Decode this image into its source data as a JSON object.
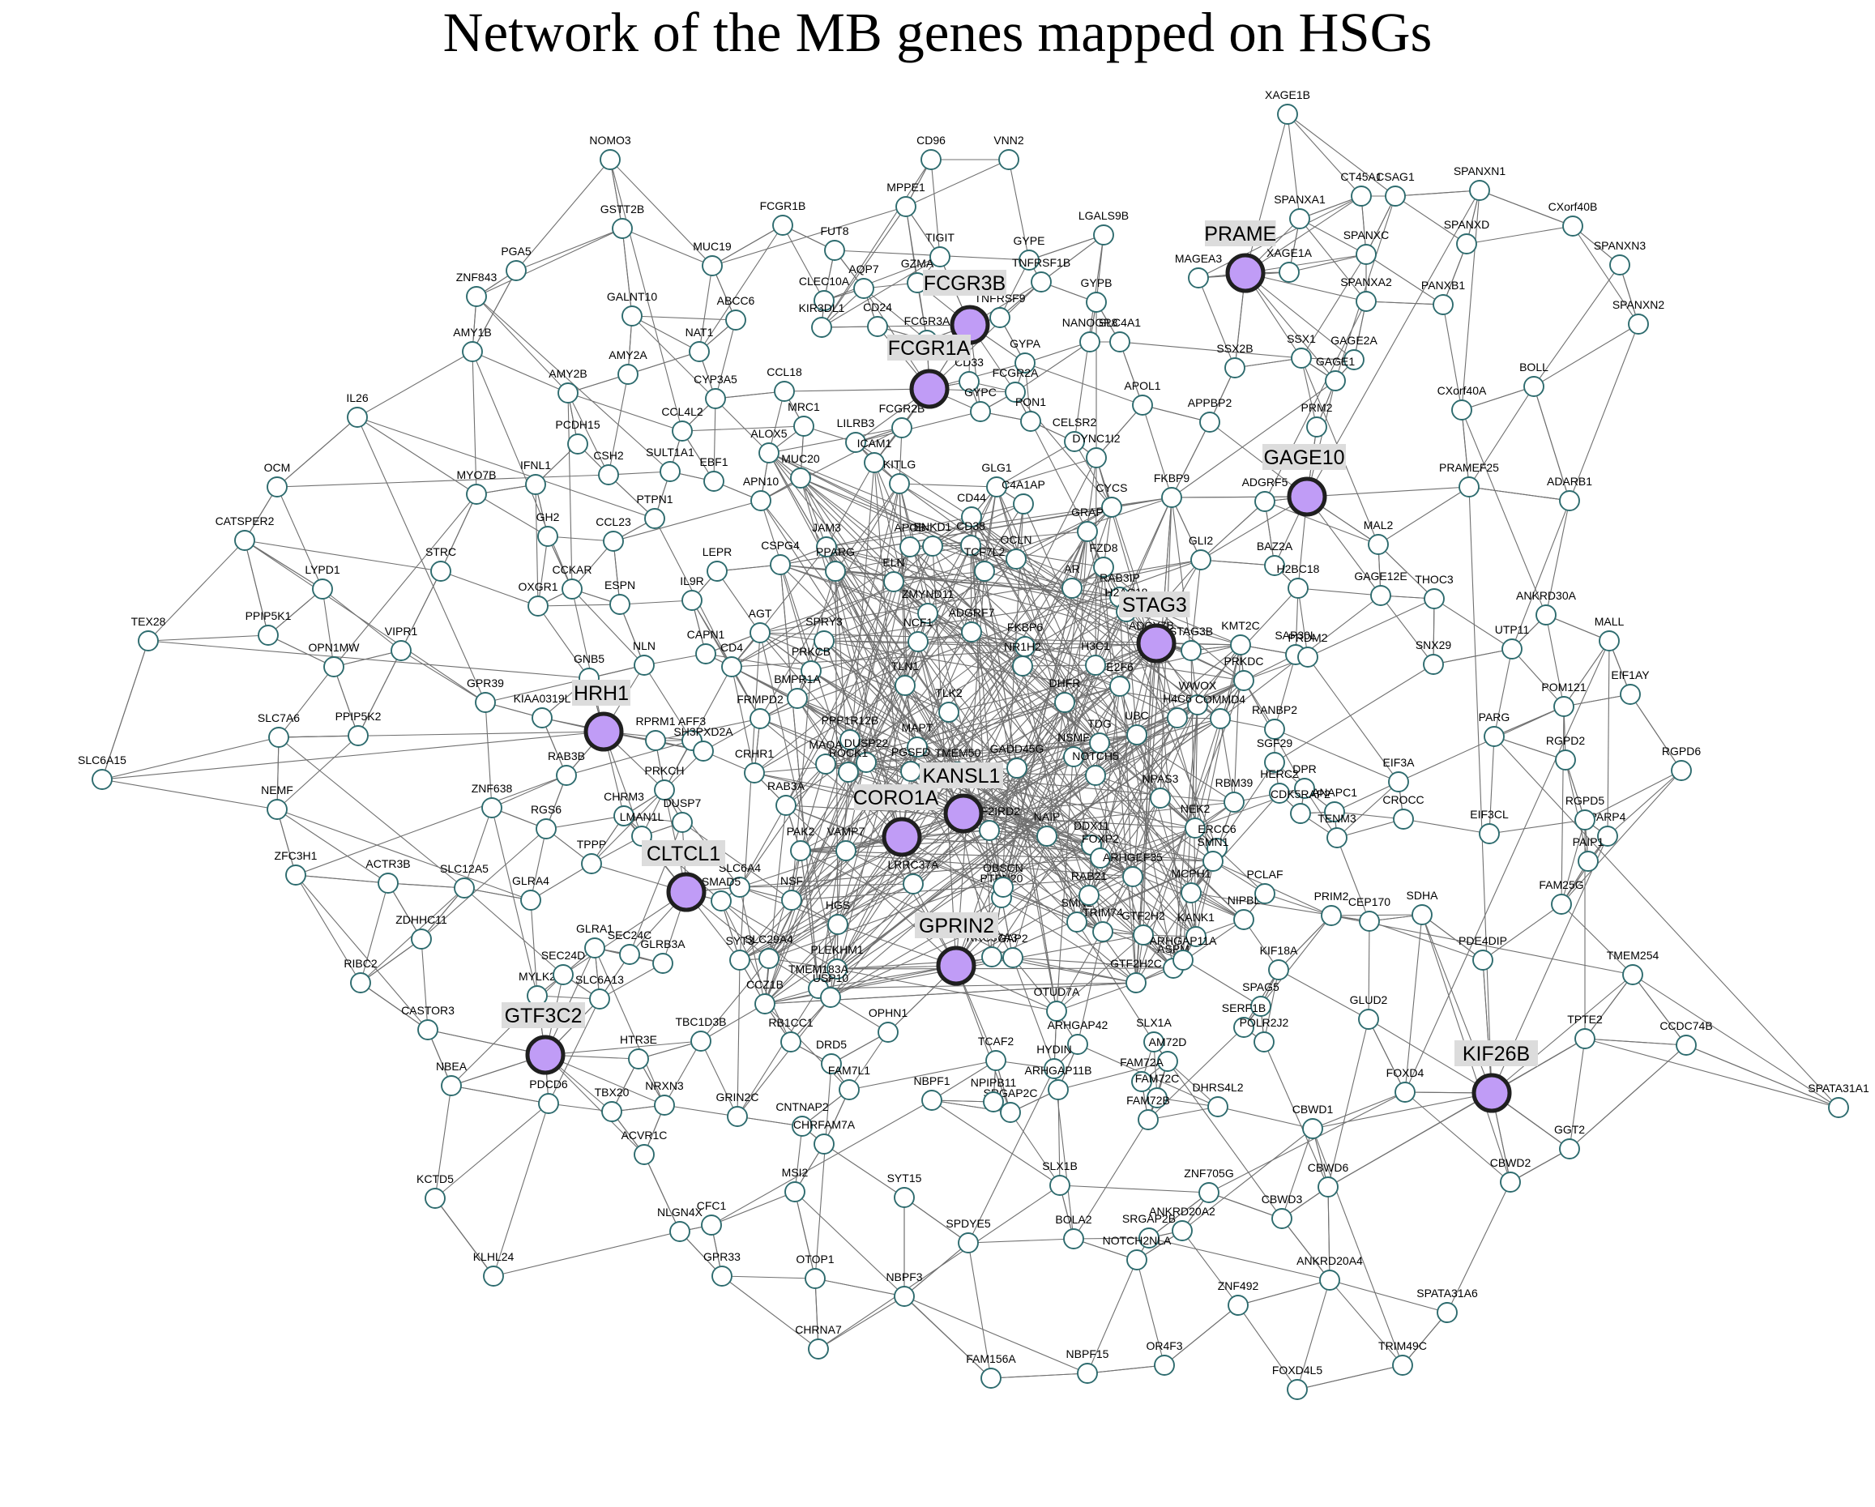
{
  "title": "Network of the MB genes mapped on HSGs",
  "colors": {
    "hub_fill": "#c09cf6",
    "hub_stroke": "#1f1f1f",
    "node_fill": "#ffffff",
    "node_stroke": "#2d6b6e",
    "edge": "#707070",
    "hub_label_bg": "#dcdcdc"
  },
  "hubs": [
    "PRAME",
    "FCGR3B",
    "FCGR1A",
    "GAGE10",
    "STAG3",
    "HRH1",
    "KANSL1",
    "CORO1A",
    "CLTCL1",
    "GPRIN2",
    "GTF3C2",
    "KIF26B"
  ],
  "genes": [
    "XAGE1B",
    "NOMO3",
    "CD96",
    "VNN2",
    "SPANXN1",
    "CT45A1",
    "CSAG1",
    "CXorf40B",
    "MPPE1",
    "FCGR1B",
    "GSTT2B",
    "SPANXA1",
    "TIGIT",
    "GYPE",
    "LGALS9B",
    "FUT8",
    "SPANXD",
    "SPANXN3",
    "PGA5",
    "MUC19",
    "GZMA",
    "AQP7",
    "XAGE1A",
    "SPANXC",
    "MAGEA3",
    "ZNF843",
    "CLEC10A",
    "GYPB",
    "TNFRSF1B",
    "ABCC6",
    "KIR3DL1",
    "SPANXA2",
    "PANXB1",
    "FCGR3A",
    "TNFRSF9",
    "CD24",
    "SPANXN2",
    "NANOGP8",
    "SLC4A1",
    "AMY1B",
    "GALNT10",
    "GAGE2A",
    "SSX1",
    "AMY2A",
    "NAT1",
    "SSX2B",
    "GAGE1",
    "BOLL",
    "CYP3A5",
    "CCL18",
    "GYPA",
    "CD33",
    "FCGR2A",
    "AMY2B",
    "CXorf40A",
    "GYPC",
    "PON1",
    "IL26",
    "APOL1",
    "CCL4L2",
    "MRC1",
    "FCGR2B",
    "PCDH15",
    "APPBP2",
    "PRM2",
    "CELSR2",
    "ALOX5",
    "LILRB3",
    "EBF1",
    "SULT1A1",
    "CSH2",
    "ICAM1",
    "MYO7B",
    "IFNL1",
    "KITLG",
    "OCM",
    "DYNC1I2",
    "PRAMEF25",
    "ADARB1",
    "MUC20",
    "GLG1",
    "FKBP9",
    "C4A1AP",
    "CYCS",
    "APN10",
    "ADGRF5",
    "PTPN1",
    "GH2",
    "CD44",
    "GRAP",
    "CCL23",
    "MAL2",
    "CATSPER2",
    "JAM3",
    "APOB",
    "ENKD1",
    "CD38",
    "OCLN",
    "FZD8",
    "BAZ2A",
    "CSPG4",
    "PPARG",
    "LEPR",
    "H2BC18",
    "CCKAR",
    "STRC",
    "TCF7L2",
    "GLI2",
    "RAB3IP",
    "ESPN",
    "ELN",
    "ZMYND11",
    "LYPD1",
    "IL9R",
    "GAGE12E",
    "H2AC18",
    "THOC3",
    "ANKRD30A",
    "AR",
    "OXGR1",
    "AGT",
    "ADGRF7",
    "ADCY7B",
    "PPIP5K1",
    "SPRY3",
    "NCF1",
    "STAG3B",
    "KMT2C",
    "FKBP6",
    "MALL",
    "SAP30L",
    "PRDM2",
    "VIPR1",
    "TEX28",
    "CAPN1",
    "CD4",
    "NR1H2",
    "OPN1MW",
    "UTP11",
    "SNX29",
    "H3C1",
    "PRKCB",
    "E2F6",
    "DHFR",
    "GNB5",
    "TLN1",
    "NLN",
    "BMPR1A",
    "PRKDC",
    "GPR39",
    "EIF1AY",
    "POM121",
    "TLK2",
    "WWOX",
    "KIAA0319L",
    "TDG",
    "COMMD4",
    "H4C6",
    "FRMPD2",
    "AFF3",
    "PPP1R12B",
    "SLC7A6",
    "PPIP5K2",
    "SH3PXD2A",
    "MAPT",
    "UBC",
    "PARG",
    "RGPD2",
    "RGPD6",
    "RANBP2",
    "DUSP22",
    "MAOA",
    "ROCK1",
    "NSMF",
    "RPRM1",
    "SGF29",
    "PGSFD",
    "GADD45G",
    "SLC6A15",
    "RAB3B",
    "TMEM50",
    "CRHR1",
    "NPAS3",
    "EIF3A",
    "HERC2",
    "RBM39",
    "NOTCH5",
    "DPR",
    "PRKCH",
    "ZNF638",
    "RAB3A",
    "CDK5RAP2",
    "ANAPC1",
    "NEMF",
    "CHRM3",
    "RGS6",
    "DUSP7",
    "NEK2",
    "CROCC",
    "PARP4",
    "RGPD5",
    "EIF3CL",
    "NAIP",
    "GATF2IRD2",
    "ERCC6",
    "SMN1",
    "LMAN1L",
    "TENM3",
    "PAK2",
    "DDX11",
    "FOXP2",
    "TPPP",
    "VAMP7",
    "ZFC3H1",
    "PAIP1",
    "ACTR3B",
    "ARHGEF35",
    "SLC12A5",
    "GLRA4",
    "NSF",
    "SLC6A4",
    "SMAD5",
    "PTPN20",
    "OBSCN",
    "MCPH1",
    "SMN2",
    "PCLAF",
    "LRRC37A",
    "SDHA",
    "TRIM74",
    "ZDHHC11",
    "RAB21",
    "PRIM2",
    "CEP170",
    "FAM25G",
    "NIPBL",
    "KANK1",
    "GTF2H2",
    "GLRA1",
    "HGS",
    "SEC24C",
    "GLRB3A",
    "SYT3",
    "ASPM",
    "RIBC2",
    "SLC29A4",
    "ARHGAP11A",
    "PLEKHM1",
    "RRC37A3",
    "GAP2",
    "KIF18A",
    "PDE4DIP",
    "MYLK2",
    "SEC24D",
    "GTF2H2C",
    "TMEM254",
    "SLC6A13",
    "CASTOR3",
    "TBC1D3B",
    "TMEM183A",
    "SPAG5",
    "CCZ1B",
    "USP10",
    "OTUD7A",
    "SERF1B",
    "RB1CC1",
    "OPHN1",
    "GLUD2",
    "POLR2J2",
    "ARHGAP42",
    "TPTE2",
    "SLX1A",
    "CCDC74B",
    "HTR3E",
    "TCAF2",
    "HYDIN",
    "AM72D",
    "DRD5",
    "FOXD4",
    "NBEA",
    "FAM72A",
    "PDCD6",
    "ARHGAP11B",
    "SPATA31A1",
    "FAM72C",
    "NRXN3",
    "NBPF1",
    "FAM7L1",
    "TBX20",
    "GRIN2C",
    "CNTNAP2",
    "SRGAP2C",
    "DHRS4L2",
    "CBWD1",
    "NPIPB11",
    "CHRFAM7A",
    "ACVR1C",
    "GGT2",
    "FAM72B",
    "CBWD2",
    "SLX1B",
    "MSI2",
    "SYT15",
    "CBWD6",
    "ZNF705G",
    "KCTD5",
    "CFC1",
    "NLGN4X",
    "CBWD3",
    "ANKRD20A2",
    "SRGAP2B",
    "BOLA2",
    "SPDYE5",
    "NOTCH2NLA",
    "GPR33",
    "OTOP1",
    "KLHL24",
    "ANKRD20A4",
    "NBPF3",
    "ZNF492",
    "SPATA31A6",
    "CHRNA7",
    "FAM156A",
    "NBPF15",
    "OR4F3",
    "TRIM49C",
    "FOXD4L5"
  ]
}
